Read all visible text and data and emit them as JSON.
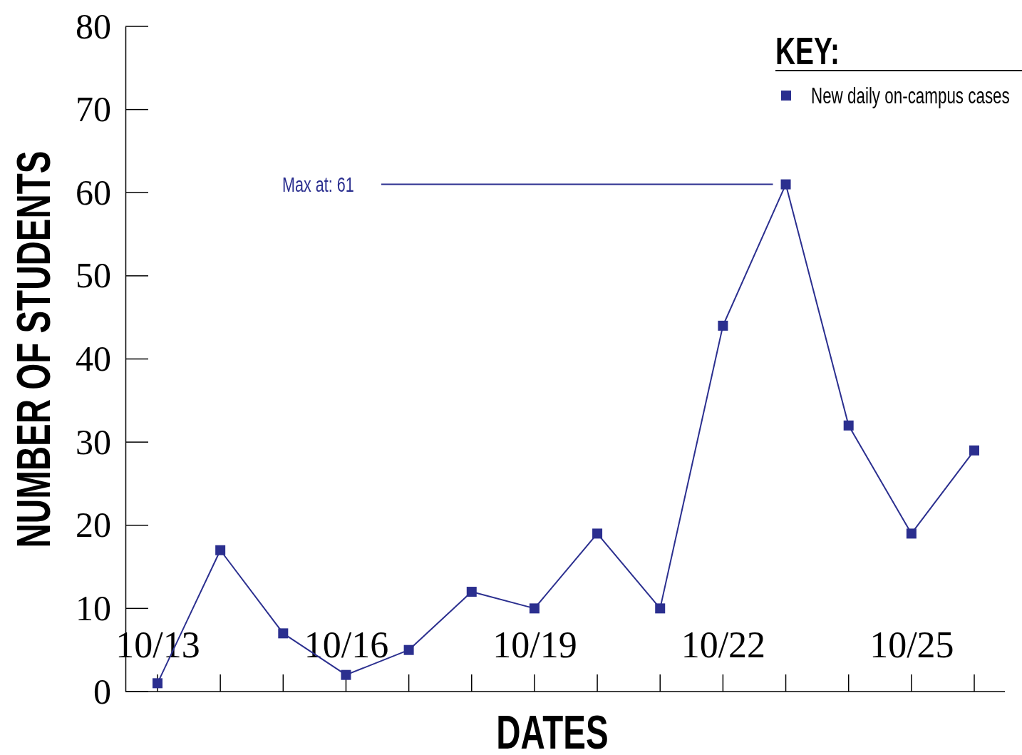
{
  "chart_data": {
    "type": "line",
    "xlabel": "DATES",
    "ylabel": "NUMBER OF STUDENTS",
    "legend_title": "KEY:",
    "categories": [
      "10/13",
      null,
      null,
      "10/16",
      null,
      null,
      "10/19",
      null,
      null,
      "10/22",
      null,
      null,
      "10/25",
      null
    ],
    "series": [
      {
        "name": "New daily on-campus cases",
        "color": "#2b2f8f",
        "values": [
          1,
          17,
          7,
          2,
          5,
          12,
          10,
          19,
          10,
          44,
          61,
          32,
          19,
          29
        ]
      }
    ],
    "ylim": [
      0,
      80
    ],
    "yticks": [
      0,
      10,
      20,
      30,
      40,
      50,
      60,
      70,
      80
    ],
    "ref_lines": [
      {
        "axis": "y",
        "value": 61,
        "label": "Max at: 61",
        "color": "#2b2f8f"
      }
    ],
    "legend": "top right",
    "marker": "square",
    "line_style": "solid",
    "grid": false
  }
}
